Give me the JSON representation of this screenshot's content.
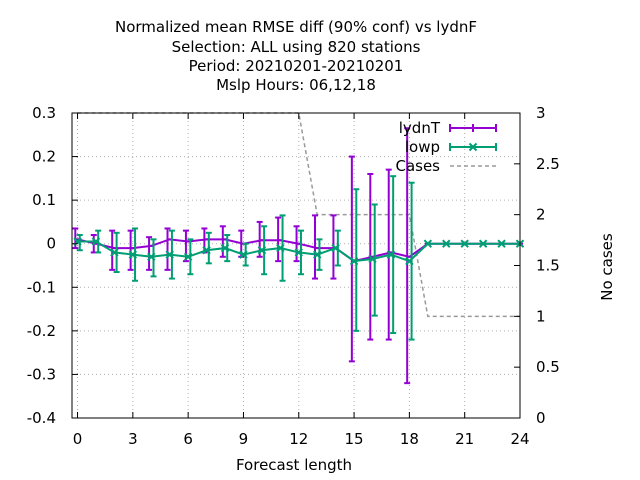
{
  "chart_data": {
    "type": "line",
    "title_lines": [
      "Normalized mean RMSE diff (90% conf) vs lydnF",
      "Selection: ALL using   820 stations",
      "Period: 20210201-20210201",
      "Mslp   Hours:  06,12,18"
    ],
    "xlabel": "Forecast length",
    "ylabel_right": "No cases",
    "xlim": [
      -0.3,
      24
    ],
    "ylim": [
      -0.4,
      0.3
    ],
    "y2lim": [
      0,
      3
    ],
    "xticks": [
      0,
      3,
      6,
      9,
      12,
      15,
      18,
      21,
      24
    ],
    "xtick_labels": [
      "0",
      "3",
      "6",
      "9",
      "12",
      "15",
      "18",
      "21",
      "24"
    ],
    "yticks": [
      -0.4,
      -0.3,
      -0.2,
      -0.1,
      0,
      0.1,
      0.2,
      0.3
    ],
    "ytick_labels": [
      "-0.4",
      "-0.3",
      "-0.2",
      "-0.1",
      "0",
      "0.1",
      "0.2",
      "0.3"
    ],
    "y2ticks": [
      0,
      0.5,
      1,
      1.5,
      2,
      2.5,
      3
    ],
    "y2tick_labels": [
      "0",
      "0.5",
      "1",
      "1.5",
      "2",
      "2.5",
      "3"
    ],
    "grid": true,
    "legend_position": "top-right",
    "x": [
      0,
      1,
      2,
      3,
      4,
      5,
      6,
      7,
      8,
      9,
      10,
      11,
      12,
      13,
      14,
      15,
      16,
      17,
      18,
      19,
      20,
      21,
      22,
      23,
      24
    ],
    "series": [
      {
        "name": "lydnT",
        "color": "#9400d3",
        "marker": "errorbar",
        "values": [
          0.01,
          0.0,
          -0.01,
          -0.01,
          -0.005,
          0.01,
          0.005,
          0.01,
          0.01,
          0.0,
          0.008,
          0.008,
          0.0,
          -0.01,
          -0.01,
          -0.04,
          -0.03,
          -0.02,
          -0.03,
          0.0,
          0.0,
          0.0,
          0.0,
          0.0,
          0.0
        ],
        "err_low": [
          -0.01,
          -0.02,
          -0.06,
          -0.06,
          -0.06,
          -0.06,
          -0.04,
          -0.02,
          -0.03,
          -0.03,
          -0.03,
          -0.04,
          -0.04,
          -0.08,
          -0.08,
          -0.27,
          -0.22,
          -0.22,
          -0.32,
          0.0,
          0.0,
          0.0,
          0.0,
          0.0,
          0.0
        ],
        "err_high": [
          0.035,
          0.02,
          0.03,
          0.03,
          0.015,
          0.035,
          0.03,
          0.035,
          0.04,
          0.03,
          0.05,
          0.06,
          0.04,
          0.065,
          0.065,
          0.2,
          0.16,
          0.17,
          0.265,
          0.0,
          0.0,
          0.0,
          0.0,
          0.0,
          0.0
        ]
      },
      {
        "name": "lowp",
        "color": "#009e73",
        "marker": "x-errorbar",
        "values": [
          0.005,
          0.005,
          -0.02,
          -0.025,
          -0.03,
          -0.025,
          -0.03,
          -0.015,
          -0.01,
          -0.025,
          -0.015,
          -0.01,
          -0.02,
          -0.025,
          -0.01,
          -0.04,
          -0.035,
          -0.025,
          -0.04,
          0.0,
          0.0,
          0.0,
          0.0,
          0.0,
          0.0
        ],
        "err_low": [
          -0.015,
          -0.02,
          -0.065,
          -0.085,
          -0.075,
          -0.08,
          -0.07,
          -0.045,
          -0.04,
          -0.05,
          -0.07,
          -0.085,
          -0.07,
          -0.06,
          -0.05,
          -0.2,
          -0.165,
          -0.205,
          -0.22,
          0.0,
          0.0,
          0.0,
          0.0,
          0.0,
          0.0
        ],
        "err_high": [
          0.02,
          0.03,
          0.025,
          0.035,
          0.01,
          0.03,
          0.01,
          0.025,
          0.02,
          0.0,
          0.04,
          0.065,
          0.03,
          0.01,
          0.03,
          0.125,
          0.09,
          0.155,
          0.14,
          0.0,
          0.0,
          0.0,
          0.0,
          0.0,
          0.0
        ]
      }
    ],
    "cases": {
      "name": "Cases",
      "color": "#999999",
      "axis": "y2",
      "x": [
        0,
        1,
        2,
        3,
        4,
        5,
        6,
        7,
        8,
        9,
        10,
        11,
        12,
        13,
        14,
        15,
        16,
        17,
        18,
        19,
        20,
        21,
        22,
        23,
        24
      ],
      "values": [
        3,
        3,
        3,
        3,
        3,
        3,
        3,
        3,
        3,
        3,
        3,
        3,
        3,
        2,
        2,
        2,
        2,
        2,
        2,
        1,
        1,
        1,
        1,
        1,
        1
      ]
    }
  }
}
